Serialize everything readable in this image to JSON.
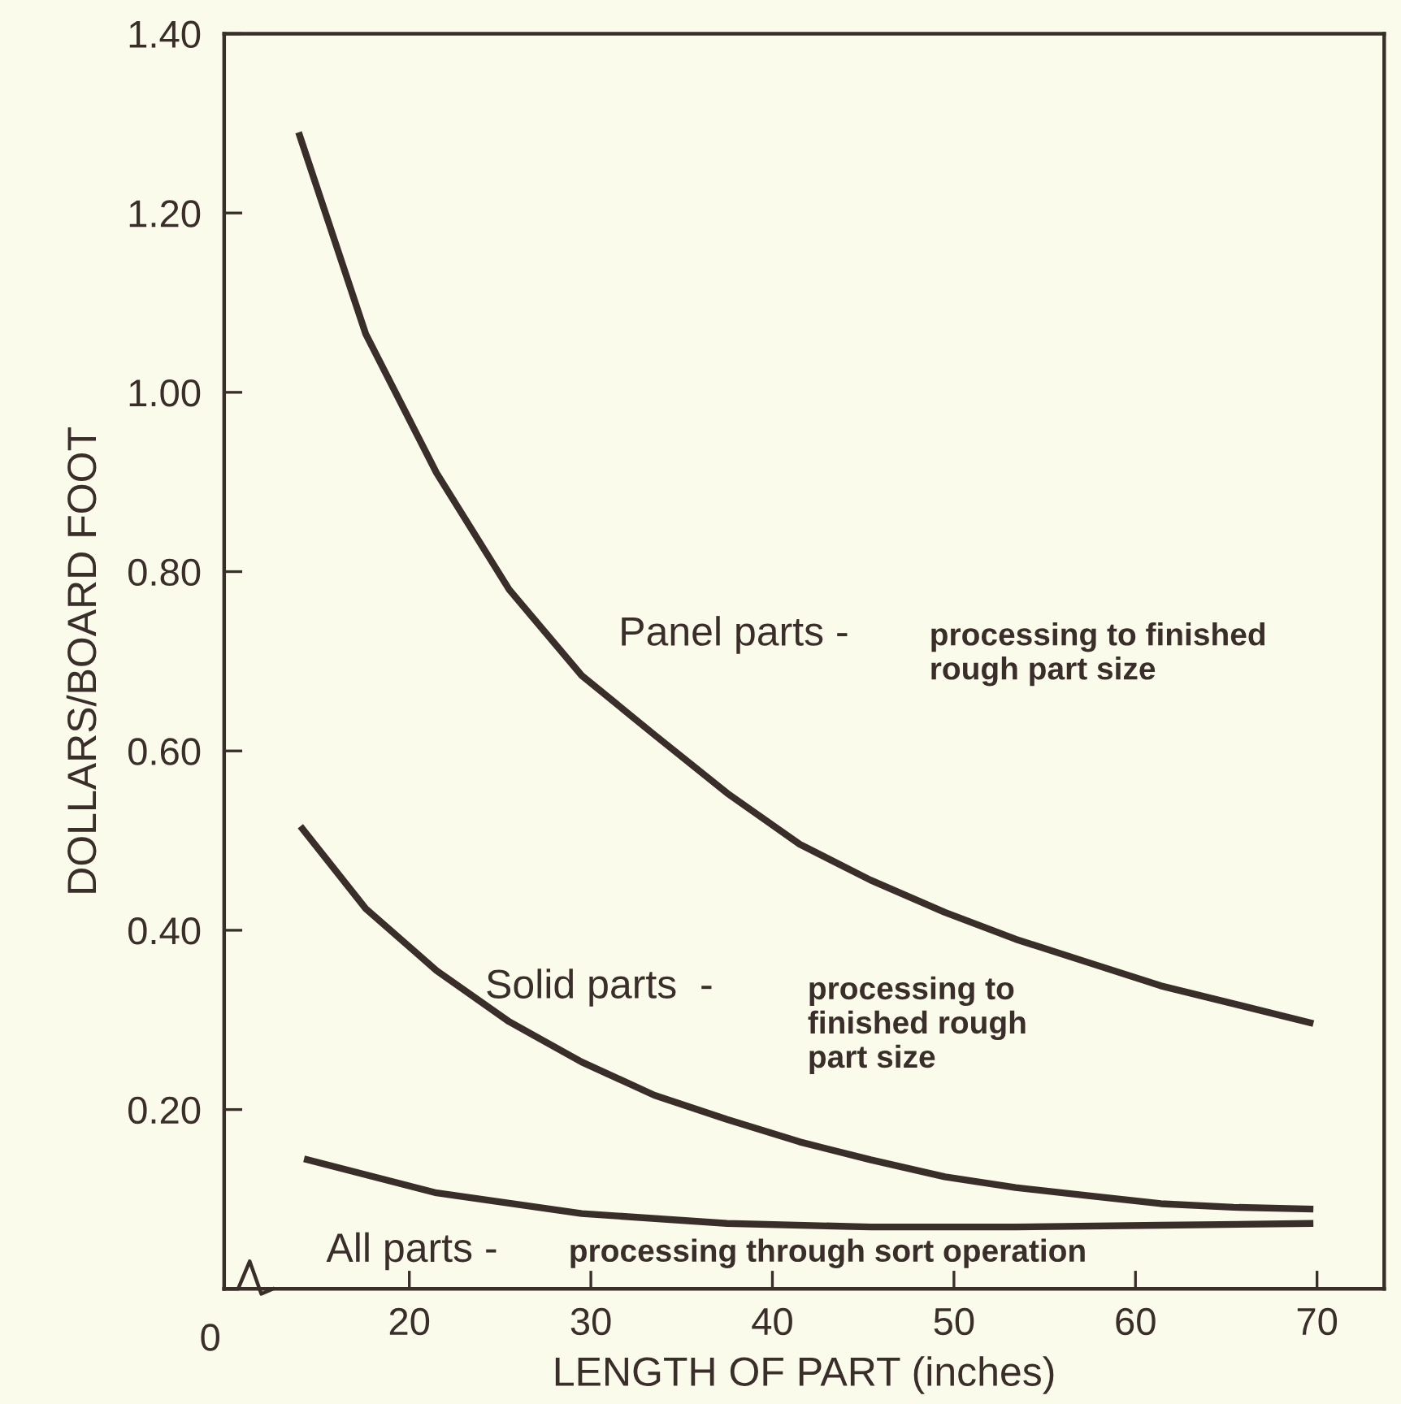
{
  "chart_data": {
    "type": "line",
    "xlabel": "LENGTH OF PART (inches)",
    "ylabel": "DOLLARS/BOARD FOOT",
    "xlim": [
      9.8,
      73.7
    ],
    "xticks": [
      20,
      30,
      40,
      50,
      60,
      70
    ],
    "ylim": [
      0,
      1.4
    ],
    "yticks": [
      {
        "value": 0.2,
        "label": "0.20"
      },
      {
        "value": 0.4,
        "label": "0.40"
      },
      {
        "value": 0.6,
        "label": "0.60"
      },
      {
        "value": 0.8,
        "label": "0.80"
      },
      {
        "value": 1.0,
        "label": "1.00"
      },
      {
        "value": 1.2,
        "label": "1.20"
      },
      {
        "value": 1.4,
        "label": "1.40"
      }
    ],
    "grid": false,
    "legend": false,
    "marker": "none",
    "line_style": "solid",
    "series": [
      {
        "color": "#3a2e2a",
        "x": [
          13.9,
          17.6,
          21.5,
          25.5,
          29.5,
          33.5,
          37.5,
          41.5,
          45.4,
          49.5,
          53.4,
          57.4,
          61.4,
          65.4,
          69.8
        ],
        "values": [
          1.29,
          1.065,
          0.91,
          0.78,
          0.684,
          0.618,
          0.553,
          0.496,
          0.456,
          0.42,
          0.39,
          0.364,
          0.338,
          0.318,
          0.296
        ]
      },
      {
        "color": "#3a2e2a",
        "x": [
          14.0,
          17.6,
          21.5,
          25.5,
          29.5,
          33.5,
          37.5,
          41.5,
          45.4,
          49.5,
          53.4,
          57.4,
          61.4,
          65.4,
          69.8
        ],
        "values": [
          0.516,
          0.424,
          0.355,
          0.298,
          0.253,
          0.216,
          0.189,
          0.164,
          0.144,
          0.125,
          0.113,
          0.104,
          0.095,
          0.091,
          0.089
        ]
      },
      {
        "color": "#3a2e2a",
        "x": [
          14.2,
          21.5,
          29.5,
          37.5,
          45.4,
          53.4,
          61.4,
          69.8
        ],
        "values": [
          0.145,
          0.107,
          0.084,
          0.073,
          0.069,
          0.069,
          0.071,
          0.073
        ]
      }
    ],
    "annotations": [
      "Panel parts -",
      "processing to finished\nrough part size",
      "Solid parts  -",
      "processing to\nfinished rough\npart size",
      "All parts -",
      "processing through sort operation",
      "0"
    ]
  }
}
